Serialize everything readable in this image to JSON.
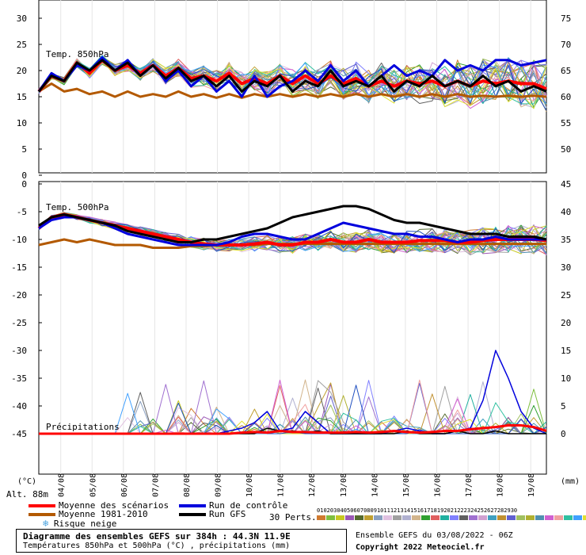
{
  "chart_data": [
    {
      "type": "line",
      "title": "Temp. 850hPa",
      "ylim": [
        0,
        30
      ],
      "y_ticks_left": [
        "30",
        "25",
        "20",
        "15",
        "10",
        "5",
        "0"
      ],
      "y_ticks_right": [
        "75",
        "70",
        "65",
        "60",
        "55",
        "50"
      ],
      "series": [
        {
          "name": "Moyenne des scénarios",
          "color": "#ff0000",
          "values": [
            16,
            19,
            18,
            21.5,
            19.5,
            22,
            20,
            21,
            19.5,
            21,
            19,
            20.5,
            18.5,
            19,
            18,
            19.5,
            17.5,
            18.5,
            17.5,
            19,
            17.5,
            19,
            17.5,
            19,
            17.5,
            18.5,
            17,
            18,
            17,
            18,
            17.5,
            18,
            17,
            18,
            17,
            18,
            17.5,
            18,
            17.5,
            17.5,
            16.5
          ]
        },
        {
          "name": "Moyenne 1981-2010",
          "color": "#b35900",
          "values": [
            16,
            17.5,
            16,
            16.5,
            15.5,
            16,
            15,
            16,
            15,
            15.5,
            15,
            16,
            15,
            15.5,
            14.8,
            15.5,
            14.8,
            15.5,
            15,
            15.5,
            15,
            15.5,
            15,
            15.5,
            15,
            15.5,
            15,
            15.5,
            15,
            15.5,
            15,
            15.5,
            15,
            15.5,
            15,
            15.2,
            15,
            15.2,
            15,
            15.2,
            15
          ]
        },
        {
          "name": "Run de contrôle",
          "color": "#0000dd",
          "values": [
            16,
            19.5,
            18,
            21,
            20,
            22.5,
            20,
            22,
            19,
            21,
            18,
            20,
            17,
            19,
            16,
            18,
            15,
            19,
            15,
            17,
            18,
            20,
            18,
            21,
            18,
            20,
            17,
            19,
            21,
            19,
            20,
            19,
            22,
            20,
            21,
            20,
            22,
            22,
            21,
            21.5,
            22
          ]
        },
        {
          "name": "Run GFS",
          "color": "#000000",
          "values": [
            16,
            19,
            18,
            21.5,
            20,
            22,
            20,
            21.5,
            19,
            21,
            18.5,
            20.5,
            18,
            19,
            17,
            19,
            16,
            18,
            17,
            19,
            16,
            18,
            17,
            20,
            17,
            18,
            17,
            19,
            16,
            18,
            17,
            19,
            17,
            18,
            17,
            19,
            17,
            18,
            16,
            17,
            16
          ]
        }
      ]
    },
    {
      "type": "line",
      "title": "Temp. 500hPa",
      "ylim": [
        -50,
        0
      ],
      "y_ticks_left": [
        "0",
        "-5",
        "-10",
        "-15",
        "-20",
        "-25",
        "-30",
        "-35",
        "-40",
        "-45"
      ],
      "y_ticks_right": [
        "45",
        "40",
        "35",
        "30",
        "25",
        "20",
        "15",
        "10",
        "5",
        "0"
      ],
      "series": [
        {
          "name": "Moyenne des scénarios",
          "color": "#ff0000",
          "values": [
            -8,
            -6,
            -5.5,
            -6,
            -6.5,
            -7,
            -7.5,
            -8,
            -8.5,
            -9,
            -9.5,
            -10,
            -10.5,
            -10.8,
            -11,
            -11,
            -11,
            -10.8,
            -10.5,
            -11,
            -11,
            -10.5,
            -10.5,
            -10,
            -10.5,
            -10.5,
            -10,
            -10.5,
            -10.5,
            -10.5,
            -10.2,
            -10.2,
            -10.2,
            -10.5,
            -10.5,
            -10.2,
            -10,
            -10,
            -10,
            -10,
            -10.2
          ]
        },
        {
          "name": "Moyenne 1981-2010",
          "color": "#b35900",
          "values": [
            -11,
            -10.5,
            -10,
            -10.5,
            -10,
            -10.5,
            -11,
            -11,
            -11,
            -11.5,
            -11.5,
            -11.5,
            -11.2,
            -11.2,
            -11,
            -11,
            -11,
            -11,
            -10.8,
            -10.8,
            -10.8,
            -10.8,
            -10.8,
            -10.8,
            -10.8,
            -10.8,
            -10.8,
            -10.8,
            -10.8,
            -10.8,
            -10.8,
            -10.8,
            -10.8,
            -10.8,
            -10.8,
            -10.8,
            -10.8,
            -10.8,
            -10.8,
            -10.8,
            -10.8
          ]
        },
        {
          "name": "Run de contrôle",
          "color": "#0000dd",
          "values": [
            -8,
            -6.5,
            -6,
            -6,
            -6.5,
            -7,
            -8,
            -9,
            -9.5,
            -10,
            -10.5,
            -11,
            -11,
            -11,
            -11,
            -10.5,
            -9.5,
            -9,
            -9,
            -9.5,
            -10,
            -10,
            -9,
            -8,
            -7,
            -7.5,
            -8,
            -8.5,
            -9,
            -9,
            -9.5,
            -9.5,
            -10,
            -10.5,
            -10,
            -10,
            -9.5,
            -10,
            -10,
            -10,
            -10
          ]
        },
        {
          "name": "Run GFS",
          "color": "#000000",
          "values": [
            -7.5,
            -6,
            -5.5,
            -6,
            -6.5,
            -7,
            -7.5,
            -8.5,
            -9,
            -9.5,
            -10,
            -10.5,
            -10.5,
            -10,
            -10,
            -9.5,
            -9,
            -8.5,
            -8,
            -7,
            -6,
            -5.5,
            -5,
            -4.5,
            -4,
            -4,
            -4.5,
            -5.5,
            -6.5,
            -7,
            -7,
            -7.5,
            -8,
            -8.5,
            -9,
            -9,
            -9,
            -9.5,
            -9.5,
            -9.5,
            -10
          ]
        }
      ]
    },
    {
      "type": "line",
      "title": "Précipitations",
      "unit": "(mm)",
      "ylim": [
        0,
        45
      ],
      "series": [
        {
          "name": "Moyenne des scénarios",
          "color": "#ff0000",
          "values": [
            0,
            0,
            0,
            0,
            0,
            0,
            0,
            0,
            0,
            0,
            0,
            0,
            0,
            0,
            0,
            0,
            0.2,
            0.3,
            0.2,
            0.5,
            0.3,
            0.3,
            0.2,
            0.2,
            0.2,
            0.3,
            0.2,
            0.3,
            0.5,
            0.3,
            0.2,
            0.3,
            0.5,
            0.5,
            0.8,
            1,
            1.2,
            1.5,
            1.5,
            1.2,
            0.5
          ]
        },
        {
          "name": "Run de contrôle",
          "color": "#0000dd",
          "values": [
            0,
            0,
            0,
            0,
            0,
            0,
            0,
            0,
            0,
            0,
            0,
            0,
            0,
            0,
            0,
            0.5,
            1,
            2,
            4,
            0.5,
            1,
            4,
            2,
            0,
            0,
            0,
            0,
            0,
            0.5,
            1,
            0.5,
            0,
            0,
            0.5,
            1,
            6,
            15,
            10,
            4,
            1,
            0
          ]
        },
        {
          "name": "Run GFS",
          "color": "#000000",
          "values": [
            0,
            0,
            0,
            0,
            0,
            0,
            0,
            0,
            0,
            0,
            0,
            0,
            0,
            0,
            0,
            0,
            0,
            0,
            1,
            0.5,
            0.5,
            0.2,
            0.5,
            0,
            0,
            0,
            0,
            0,
            0,
            0.5,
            0,
            0,
            0,
            0.5,
            0,
            0,
            0.5,
            0,
            0,
            0,
            0
          ]
        }
      ]
    }
  ],
  "x_tick_labels": [
    "04/08",
    "05/08",
    "06/08",
    "07/08",
    "08/08",
    "09/08",
    "10/08",
    "11/08",
    "12/08",
    "13/08",
    "14/08",
    "15/08",
    "16/08",
    "17/08",
    "18/08",
    "19/08"
  ],
  "axis_labels": {
    "left_unit": "(°C)",
    "right_unit": "(mm)",
    "altitude": "Alt. 88m"
  },
  "legend": {
    "mean": "Moyenne des scénarios",
    "climate": "Moyenne 1981-2010",
    "snow": "Risque neige",
    "snow_icon": "snowflake-icon",
    "control": "Run de contrôle",
    "gfs": "Run GFS",
    "perts_label": "30 Perts.",
    "pert_numbers": [
      "01",
      "02",
      "03",
      "04",
      "05",
      "06",
      "07",
      "08",
      "09",
      "10",
      "11",
      "12",
      "13",
      "14",
      "15",
      "16",
      "17",
      "18",
      "19",
      "20",
      "21",
      "22",
      "23",
      "24",
      "25",
      "26",
      "27",
      "28",
      "29",
      "30"
    ],
    "colors": {
      "mean": "#ff0000",
      "climate": "#b35900",
      "control": "#0000dd",
      "gfs": "#000000",
      "snow": "#4aa3df"
    }
  },
  "member_colors": [
    "#d07a30",
    "#7fbf3f",
    "#c8c820",
    "#9b59b6",
    "#556b2f",
    "#c0a030",
    "#8aa0c0",
    "#e0c0e0",
    "#a0a0a0",
    "#b0b0d0",
    "#d2b48c",
    "#30a030",
    "#e06060",
    "#20b0a0",
    "#8080ff",
    "#606060",
    "#a070d0",
    "#d0a0d0",
    "#40a0c0",
    "#c09030",
    "#6060d0",
    "#a0c060",
    "#b0b030",
    "#5090b0",
    "#d060d0",
    "#f0a0a0",
    "#30c0a0",
    "#40a0ff",
    "#e0e030",
    "#2050c0"
  ],
  "footer": {
    "title": "Diagramme des ensembles GEFS sur 384h : 44.3N 11.9E",
    "subtitle": "Températures 850hPa et 500hPa (°C) , précipitations (mm)",
    "run": "Ensemble GEFS du 03/08/2022 - 06Z",
    "copyright": "Copyright 2022 Meteociel.fr"
  }
}
